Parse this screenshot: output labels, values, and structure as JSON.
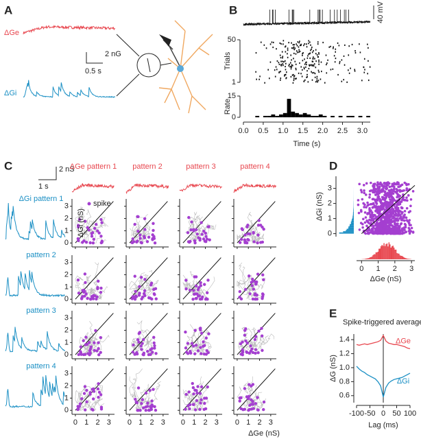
{
  "figure": {
    "panel_labels": [
      "A",
      "B",
      "C",
      "D",
      "E"
    ],
    "panel_a": {
      "ge": "ΔGe",
      "gi": "ΔGi",
      "time_scale": "0.5 s",
      "g_scale": "2 nG"
    },
    "panel_b": {
      "vm_scale": "40 mV"
    },
    "panel_c": {
      "columns": [
        "ΔGe pattern 1",
        "pattern 2",
        "pattern 3",
        "pattern 4"
      ],
      "rows": [
        "ΔGi pattern 1",
        "pattern 2",
        "pattern 3",
        "pattern 4"
      ],
      "g_scale": "2 nS",
      "time_scale": "1 s",
      "legend": "spike",
      "ylabel": "ΔGi (nS)",
      "xlabel": "ΔGe (nS)",
      "ticks": [
        0,
        1,
        2,
        3
      ]
    }
  },
  "chart_data": [
    {
      "type": "raster",
      "ylabel": "Trials",
      "xlim": [
        0,
        3.2
      ],
      "ylim": [
        1,
        50
      ],
      "yticks": [
        1,
        50
      ]
    },
    {
      "type": "histogram",
      "ylabel": "Rate",
      "xlabel": "Time (s)",
      "color": "#000000",
      "bins": [
        0,
        0.1,
        0.2,
        0.3,
        0.4,
        0.5,
        0.6,
        0.7,
        0.8,
        0.9,
        1.0,
        1.1,
        1.2,
        1.3,
        1.4,
        1.5,
        1.6,
        1.7,
        1.8,
        1.9,
        2.0,
        2.1,
        2.2,
        2.3,
        2.4,
        2.5,
        2.6,
        2.7,
        2.8,
        2.9,
        3.0,
        3.1,
        3.2
      ],
      "values": [
        0,
        0,
        0,
        1,
        0,
        1,
        1,
        2,
        1,
        2,
        3,
        13,
        4,
        3,
        2,
        3,
        2,
        1,
        1,
        2,
        1,
        0,
        1,
        0,
        1,
        0,
        1,
        1,
        0,
        1,
        0,
        1
      ],
      "xlim": [
        0,
        3.2
      ],
      "ylim": [
        0,
        15
      ],
      "yticks": [
        0,
        15
      ],
      "xticks": [
        {
          "value": 0,
          "label": "0.0"
        },
        0.5,
        {
          "value": 1,
          "label": "1.0"
        },
        1.5,
        {
          "value": 2,
          "label": "2.0"
        },
        2.5,
        {
          "value": 3,
          "label": "3.0"
        }
      ]
    },
    {
      "type": "scatter",
      "xlabel": "ΔGe (nS)",
      "ylabel": "ΔGi (nS)",
      "color": "#a43fd0",
      "xlim": [
        -0.3,
        3.2
      ],
      "ylim": [
        -0.2,
        3.8
      ],
      "xticks": [
        0,
        1,
        2,
        3
      ],
      "yticks": [
        0,
        1,
        2,
        3
      ]
    },
    {
      "type": "line",
      "title": "Spike-triggered average",
      "xlabel": "Lag (ms)",
      "ylabel": "ΔG (nS)",
      "x": [
        -100,
        -90,
        -80,
        -70,
        -60,
        -50,
        -40,
        -30,
        -20,
        -10,
        0,
        10,
        20,
        30,
        40,
        50,
        60,
        70,
        80,
        90,
        100
      ],
      "xlim": [
        -100,
        100
      ],
      "ylim": [
        0.5,
        1.48
      ],
      "xticks": [
        -100,
        -50,
        0,
        50,
        100
      ],
      "yticks": [
        0.6,
        0.8,
        {
          "value": 1,
          "label": "1.0"
        },
        1.2,
        1.4
      ],
      "series": [
        {
          "name": "ΔGe",
          "color": "#e8474f",
          "values": [
            1.33,
            1.32,
            1.33,
            1.34,
            1.33,
            1.34,
            1.35,
            1.36,
            1.37,
            1.39,
            1.46,
            1.38,
            1.35,
            1.34,
            1.33,
            1.33,
            1.32,
            1.31,
            1.3,
            1.28,
            1.27
          ]
        },
        {
          "name": "ΔGi",
          "color": "#1a8fc4",
          "values": [
            1.02,
            0.98,
            0.95,
            0.93,
            0.9,
            0.88,
            0.86,
            0.84,
            0.8,
            0.74,
            0.58,
            0.72,
            0.78,
            0.81,
            0.83,
            0.84,
            0.85,
            0.86,
            0.88,
            0.9,
            0.92
          ]
        }
      ]
    }
  ]
}
